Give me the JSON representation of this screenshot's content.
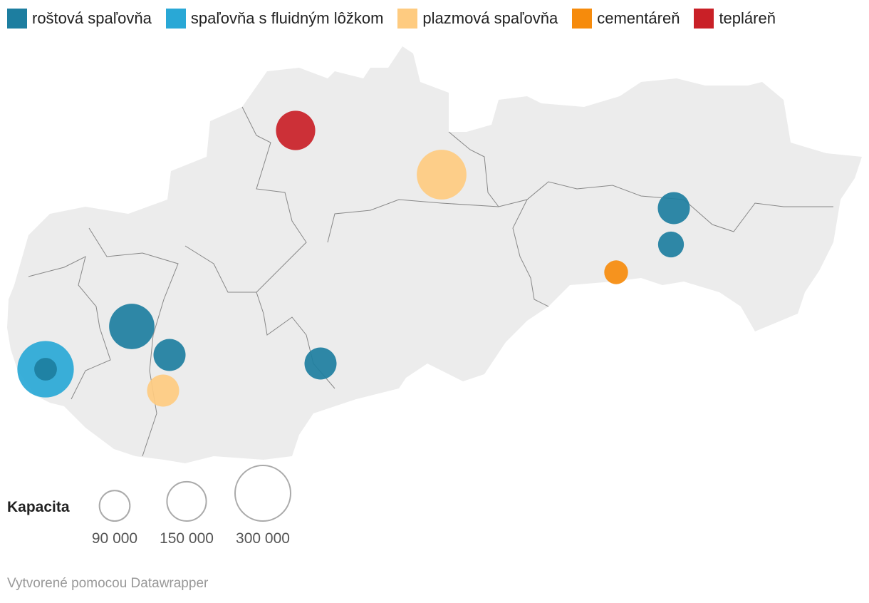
{
  "legend": [
    {
      "label": "roštová spaľovňa",
      "color": "#1d7ea0"
    },
    {
      "label": "spaľovňa s fluidným lôžkom",
      "color": "#29a8d6"
    },
    {
      "label": "plazmová spaľovňa",
      "color": "#fecb80"
    },
    {
      "label": "cementáreň",
      "color": "#f68b0c"
    },
    {
      "label": "tepláreň",
      "color": "#c92027"
    }
  ],
  "points": [
    {
      "category": 1,
      "capacity": 310000
    },
    {
      "category": 0,
      "capacity": 50000
    },
    {
      "category": 0,
      "capacity": 200000
    },
    {
      "category": 0,
      "capacity": 100000
    },
    {
      "category": 2,
      "capacity": 100000
    },
    {
      "category": 0,
      "capacity": 100000
    },
    {
      "category": 4,
      "capacity": 150000
    },
    {
      "category": 2,
      "capacity": 240000
    },
    {
      "category": 0,
      "capacity": 100000
    },
    {
      "category": 0,
      "capacity": 65000
    },
    {
      "category": 3,
      "capacity": 55000
    }
  ],
  "size_legend": {
    "title": "Kapacita",
    "items": [
      {
        "value": 90000,
        "label": "90 000"
      },
      {
        "value": 150000,
        "label": "150 000"
      },
      {
        "value": 300000,
        "label": "300 000"
      }
    ]
  },
  "footer": "Vytvorené pomocou Datawrapper"
}
